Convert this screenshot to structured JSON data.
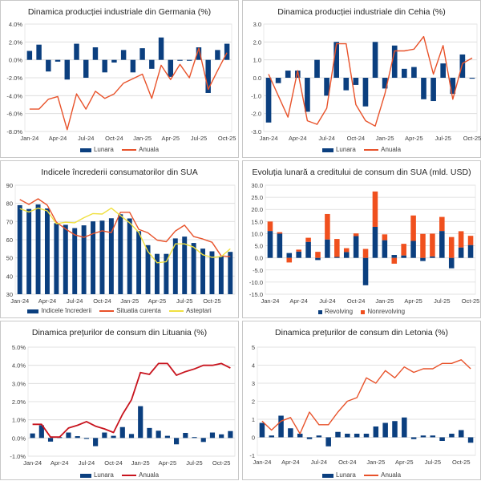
{
  "colors": {
    "bar": "#0b3f7f",
    "line_red": "#e8522a",
    "line_darkred": "#c8141e",
    "line_yellow": "#f0e040",
    "nonrevolving": "#f0501e",
    "grid": "#d9d9d9"
  },
  "chart_data": [
    {
      "id": "de",
      "type": "bar+line",
      "title": "Dinamica producției industriale din Germania (%)",
      "ylim": [
        -8,
        4
      ],
      "ystep": 2,
      "yformat": "pct1",
      "x": [
        "Jan-24",
        "Feb-24",
        "Mar-24",
        "Apr-24",
        "May-24",
        "Jun-24",
        "Jul-24",
        "Aug-24",
        "Sep-24",
        "Oct-24",
        "Nov-24",
        "Dec-24",
        "Jan-25",
        "Feb-25",
        "Mar-25",
        "Apr-25",
        "May-25",
        "Jun-25",
        "Jul-25",
        "Aug-25",
        "Sep-25",
        "Oct-25"
      ],
      "xtick_labels": [
        "Jan-24",
        "Apr-24",
        "Jul-24",
        "Oct-24",
        "Jan-25",
        "Apr-25",
        "Jul-25",
        "Oct-25"
      ],
      "series": [
        {
          "name": "Lunara",
          "kind": "bar",
          "values": [
            1.0,
            1.7,
            -1.3,
            -0.2,
            -2.2,
            1.8,
            -2.0,
            1.4,
            -1.4,
            -0.3,
            1.1,
            -1.4,
            1.3,
            -1.0,
            2.5,
            -1.9,
            -0.1,
            -0.1,
            1.4,
            -3.7,
            1.1,
            1.8
          ]
        },
        {
          "name": "Anuala",
          "kind": "line",
          "values": [
            -5.5,
            -5.5,
            -4.4,
            -4.1,
            -7.8,
            -3.8,
            -5.5,
            -3.5,
            -4.3,
            -3.8,
            -2.6,
            -2.1,
            -1.6,
            -4.3,
            -0.6,
            -2.2,
            -0.5,
            -2.0,
            1.3,
            -3.3,
            -1.2,
            0.8
          ]
        }
      ],
      "legend": "bottom"
    },
    {
      "id": "cz",
      "type": "bar+line",
      "title": "Dinamica producției industriale din Cehia (%)",
      "ylim": [
        -3,
        3
      ],
      "ystep": 1,
      "yformat": "num1",
      "x": [
        "Jan-24",
        "Feb-24",
        "Mar-24",
        "Apr-24",
        "May-24",
        "Jun-24",
        "Jul-24",
        "Aug-24",
        "Sep-24",
        "Oct-24",
        "Nov-24",
        "Dec-24",
        "Jan-25",
        "Feb-25",
        "Mar-25",
        "Apr-25",
        "May-25",
        "Jun-25",
        "Jul-25",
        "Aug-25",
        "Sep-25",
        "Oct-25"
      ],
      "xtick_labels": [
        "Jan-24",
        "Apr-24",
        "Jul-24",
        "Oct-24",
        "Jan-25",
        "Apr-25",
        "Jul-25",
        "Oct-25"
      ],
      "series": [
        {
          "name": "Lunara",
          "kind": "bar",
          "values": [
            -2.5,
            -0.3,
            0.4,
            0.4,
            -1.9,
            1.0,
            -1.0,
            2.0,
            -0.7,
            -0.4,
            -1.6,
            2.0,
            -0.6,
            1.8,
            0.5,
            0.6,
            -1.2,
            -1.3,
            0.8,
            -0.9,
            1.3,
            -0.05
          ]
        },
        {
          "name": "Anuala",
          "kind": "line",
          "values": [
            0.2,
            -1.0,
            -2.2,
            0.4,
            -2.4,
            -2.6,
            -1.7,
            1.9,
            1.9,
            -1.5,
            -2.4,
            -2.7,
            -0.9,
            1.5,
            1.5,
            1.6,
            2.3,
            0.2,
            1.8,
            -1.2,
            0.8,
            1.1
          ]
        }
      ],
      "legend": "bottom"
    },
    {
      "id": "us_conf",
      "type": "bar+line",
      "title": "Indicele încrederii consumatorilor din SUA",
      "ylim": [
        30,
        90
      ],
      "ystep": 10,
      "yformat": "int",
      "x": [
        "Jan-24",
        "Feb-24",
        "Mar-24",
        "Apr-24",
        "May-24",
        "Jun-24",
        "Jul-24",
        "Aug-24",
        "Sep-24",
        "Oct-24",
        "Nov-24",
        "Dec-24",
        "Jan-25",
        "Feb-25",
        "Mar-25",
        "Apr-25",
        "May-25",
        "Jun-25",
        "Jul-25",
        "Aug-25",
        "Sep-25",
        "Oct-25",
        "Nov-25",
        "Dec-25"
      ],
      "xtick_labels": [
        "Jan-24",
        "Apr-24",
        "Jul-24",
        "Oct-24",
        "Jan-25",
        "Apr-25",
        "Jul-25",
        "Oct-25"
      ],
      "series": [
        {
          "name": "Indicele încrederii",
          "kind": "bar",
          "values": [
            79.0,
            76.9,
            79.4,
            77.2,
            69.1,
            68.2,
            66.4,
            67.9,
            70.1,
            70.5,
            71.8,
            74.0,
            71.7,
            64.7,
            57.0,
            52.2,
            52.2,
            60.7,
            61.7,
            58.2,
            55.1,
            53.6,
            51.0,
            53.3
          ]
        },
        {
          "name": "Situatia curenta",
          "kind": "line",
          "color_key": "line_red",
          "values": [
            82.1,
            79.4,
            82.5,
            79.0,
            69.6,
            65.9,
            62.7,
            61.3,
            63.3,
            64.9,
            63.9,
            75.1,
            75.1,
            65.7,
            63.8,
            59.8,
            58.9,
            64.8,
            68.0,
            61.7,
            60.4,
            58.6,
            51.1,
            50.7
          ]
        },
        {
          "name": "Asteptari",
          "kind": "line",
          "color_key": "line_yellow",
          "values": [
            77.1,
            75.2,
            77.4,
            75.9,
            68.8,
            69.6,
            69.3,
            72.1,
            74.4,
            74.1,
            77.4,
            73.3,
            69.3,
            64.0,
            53.5,
            47.3,
            47.9,
            57.7,
            57.7,
            55.9,
            51.7,
            50.3,
            50.7,
            55.0
          ]
        }
      ],
      "legend": "bottom"
    },
    {
      "id": "us_credit",
      "type": "stacked-bar",
      "title": "Evoluția lunară a creditului de consum din SUA (mld. USD)",
      "ylim": [
        -15,
        30
      ],
      "ystep": 5,
      "yformat": "num1",
      "x": [
        "Jan-24",
        "Feb-24",
        "Mar-24",
        "Apr-24",
        "May-24",
        "Jun-24",
        "Jul-24",
        "Aug-24",
        "Sep-24",
        "Oct-24",
        "Nov-24",
        "Dec-24",
        "Jan-25",
        "Feb-25",
        "Mar-25",
        "Apr-25",
        "May-25",
        "Jun-25",
        "Jul-25",
        "Aug-25",
        "Sep-25",
        "Oct-25"
      ],
      "xtick_labels": [
        "Jan-24",
        "Apr-24",
        "Jul-24",
        "Oct-24",
        "Jan-25",
        "Apr-25",
        "Jul-25",
        "Oct-25"
      ],
      "series": [
        {
          "name": "Revolving",
          "kind": "bar",
          "color_key": "bar",
          "values": [
            11.1,
            10.0,
            2.0,
            2.6,
            6.6,
            -0.9,
            7.6,
            0.4,
            2.4,
            9.0,
            -11.3,
            12.8,
            7.3,
            1.2,
            1.0,
            7.0,
            -1.3,
            0.6,
            11.1,
            -4.3,
            4.3,
            5.3
          ]
        },
        {
          "name": "Nonrevolving",
          "kind": "bar",
          "color_key": "nonrevolving",
          "values": [
            3.9,
            0.6,
            -1.9,
            0.8,
            1.7,
            2.5,
            10.5,
            7.4,
            1.6,
            1.1,
            3.7,
            14.6,
            2.4,
            -2.4,
            4.8,
            10.5,
            9.9,
            9.4,
            5.8,
            8.6,
            6.7,
            3.8
          ]
        }
      ],
      "legend": "bottom"
    },
    {
      "id": "lt",
      "type": "bar+line",
      "title": "Dinamica prețurilor de consum din Lituania (%)",
      "ylim": [
        -1,
        5
      ],
      "ystep": 1,
      "yformat": "pct1",
      "x": [
        "Jan-24",
        "Feb-24",
        "Mar-24",
        "Apr-24",
        "May-24",
        "Jun-24",
        "Jul-24",
        "Aug-24",
        "Sep-24",
        "Oct-24",
        "Nov-24",
        "Dec-24",
        "Jan-25",
        "Feb-25",
        "Mar-25",
        "Apr-25",
        "May-25",
        "Jun-25",
        "Jul-25",
        "Aug-25",
        "Sep-25",
        "Oct-25",
        "Nov-25"
      ],
      "xtick_labels": [
        "Jan-24",
        "Apr-24",
        "Jul-24",
        "Oct-24",
        "Jan-25",
        "Apr-25",
        "Jul-25",
        "Oct-25"
      ],
      "series": [
        {
          "name": "Lunara",
          "kind": "bar",
          "values": [
            0.25,
            0.7,
            -0.2,
            0.05,
            0.3,
            0.1,
            -0.05,
            -0.45,
            0.3,
            0.12,
            0.6,
            0.22,
            1.75,
            0.55,
            0.4,
            0.12,
            -0.35,
            0.28,
            0.05,
            -0.22,
            0.3,
            0.2,
            0.38
          ]
        },
        {
          "name": "Anuala",
          "kind": "line",
          "color_key": "line_darkred",
          "values": [
            0.75,
            0.75,
            0.05,
            0.05,
            0.55,
            0.7,
            0.9,
            0.65,
            0.5,
            0.3,
            1.3,
            2.1,
            3.6,
            3.5,
            4.1,
            4.1,
            3.45,
            3.65,
            3.8,
            4.0,
            4.0,
            4.1,
            3.85
          ]
        }
      ],
      "legend": "bottom"
    },
    {
      "id": "lv",
      "type": "bar+line",
      "title": "Dinamica prețurilor de consum din Letonia (%)",
      "ylim": [
        -1,
        5
      ],
      "ystep": 1,
      "yformat": "int",
      "x": [
        "Jan-24",
        "Feb-24",
        "Mar-24",
        "Apr-24",
        "May-24",
        "Jun-24",
        "Jul-24",
        "Aug-24",
        "Sep-24",
        "Oct-24",
        "Nov-24",
        "Dec-24",
        "Jan-25",
        "Feb-25",
        "Mar-25",
        "Apr-25",
        "May-25",
        "Jun-25",
        "Jul-25",
        "Aug-25",
        "Sep-25",
        "Oct-25",
        "Nov-25"
      ],
      "xtick_labels": [
        "Jan-24",
        "Apr-24",
        "Jul-24",
        "Oct-24",
        "Jan-25",
        "Apr-25",
        "Jul-25",
        "Oct-25"
      ],
      "series": [
        {
          "name": "Lunara",
          "kind": "bar",
          "values": [
            0.8,
            0.1,
            1.2,
            0.5,
            0.2,
            -0.1,
            0.1,
            -0.5,
            0.3,
            0.2,
            0.2,
            0.2,
            0.6,
            0.8,
            0.9,
            1.1,
            -0.1,
            0.1,
            0.1,
            -0.2,
            0.2,
            0.4,
            -0.3
          ]
        },
        {
          "name": "Anuala",
          "kind": "line",
          "color_key": "line_red",
          "values": [
            0.9,
            0.4,
            0.9,
            1.1,
            0.2,
            1.4,
            0.7,
            0.7,
            1.4,
            2.0,
            2.2,
            3.3,
            3.0,
            3.7,
            3.3,
            3.9,
            3.6,
            3.8,
            3.8,
            4.1,
            4.1,
            4.3,
            3.8
          ]
        }
      ],
      "legend": "bottom"
    }
  ]
}
